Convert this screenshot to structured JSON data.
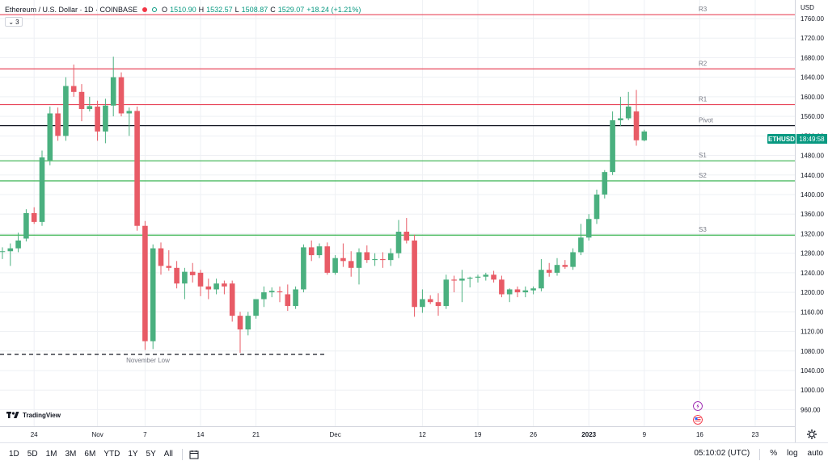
{
  "legend": {
    "title": "Ethereum / U.S. Dollar · 1D · COINBASE",
    "o_label": "O",
    "o_value": "1510.90",
    "h_label": "H",
    "h_value": "1532.57",
    "l_label": "L",
    "l_value": "1508.87",
    "c_label": "C",
    "c_value": "1529.07",
    "change": "+18.24 (+1.21%)",
    "indicator_count": "3"
  },
  "currency": "USD",
  "price_badge": {
    "symbol": "ETHUSD",
    "countdown": "18:49:58"
  },
  "colors": {
    "up": "#4ab07f",
    "down": "#e85b66",
    "resistance": "#e8475a",
    "support": "#38b24f",
    "pivot": "#131722",
    "grid": "#eef0f4"
  },
  "chart_data": {
    "type": "candlestick",
    "y_ticks": [
      960,
      1000,
      1040,
      1080,
      1120,
      1160,
      1200,
      1240,
      1280,
      1320,
      1360,
      1400,
      1440,
      1480,
      1520,
      1560,
      1600,
      1640,
      1680,
      1720,
      1760
    ],
    "ylim": [
      926,
      1798
    ],
    "x_ticks": [
      {
        "label": "24",
        "i": 4
      },
      {
        "label": "Nov",
        "i": 12
      },
      {
        "label": "7",
        "i": 18
      },
      {
        "label": "14",
        "i": 25
      },
      {
        "label": "21",
        "i": 32
      },
      {
        "label": "Dec",
        "i": 42
      },
      {
        "label": "12",
        "i": 53
      },
      {
        "label": "19",
        "i": 60
      },
      {
        "label": "26",
        "i": 67
      },
      {
        "label": "2023",
        "i": 74
      },
      {
        "label": "9",
        "i": 81
      },
      {
        "label": "16",
        "i": 88
      },
      {
        "label": "23",
        "i": 95
      }
    ],
    "levels": [
      {
        "label": "R3",
        "value": 1768,
        "kind": "resistance"
      },
      {
        "label": "R2",
        "value": 1657,
        "kind": "resistance"
      },
      {
        "label": "R1",
        "value": 1584,
        "kind": "resistance"
      },
      {
        "label": "Pivot",
        "value": 1541,
        "kind": "pivot"
      },
      {
        "label": "S1",
        "value": 1469,
        "kind": "support"
      },
      {
        "label": "S2",
        "value": 1428,
        "kind": "support"
      },
      {
        "label": "S3",
        "value": 1317,
        "kind": "support"
      }
    ],
    "annotation": {
      "label": "November Low",
      "value": 1073
    },
    "candles": [
      {
        "o": 1284,
        "h": 1292,
        "l": 1268,
        "c": 1284
      },
      {
        "o": 1284,
        "h": 1300,
        "l": 1254,
        "c": 1290
      },
      {
        "o": 1290,
        "h": 1322,
        "l": 1282,
        "c": 1306
      },
      {
        "o": 1310,
        "h": 1370,
        "l": 1304,
        "c": 1362
      },
      {
        "o": 1362,
        "h": 1374,
        "l": 1340,
        "c": 1344
      },
      {
        "o": 1344,
        "h": 1490,
        "l": 1336,
        "c": 1476
      },
      {
        "o": 1470,
        "h": 1580,
        "l": 1460,
        "c": 1566
      },
      {
        "o": 1566,
        "h": 1578,
        "l": 1510,
        "c": 1520
      },
      {
        "o": 1520,
        "h": 1640,
        "l": 1510,
        "c": 1622
      },
      {
        "o": 1622,
        "h": 1666,
        "l": 1600,
        "c": 1610
      },
      {
        "o": 1610,
        "h": 1626,
        "l": 1550,
        "c": 1575
      },
      {
        "o": 1575,
        "h": 1600,
        "l": 1570,
        "c": 1581
      },
      {
        "o": 1580,
        "h": 1592,
        "l": 1510,
        "c": 1529
      },
      {
        "o": 1529,
        "h": 1596,
        "l": 1505,
        "c": 1582
      },
      {
        "o": 1582,
        "h": 1682,
        "l": 1560,
        "c": 1640
      },
      {
        "o": 1640,
        "h": 1650,
        "l": 1560,
        "c": 1566
      },
      {
        "o": 1566,
        "h": 1578,
        "l": 1520,
        "c": 1571
      },
      {
        "o": 1571,
        "h": 1580,
        "l": 1326,
        "c": 1336
      },
      {
        "o": 1336,
        "h": 1346,
        "l": 1082,
        "c": 1100
      },
      {
        "o": 1100,
        "h": 1298,
        "l": 1084,
        "c": 1290
      },
      {
        "o": 1290,
        "h": 1302,
        "l": 1236,
        "c": 1254
      },
      {
        "o": 1254,
        "h": 1286,
        "l": 1244,
        "c": 1250
      },
      {
        "o": 1250,
        "h": 1264,
        "l": 1208,
        "c": 1218
      },
      {
        "o": 1218,
        "h": 1250,
        "l": 1186,
        "c": 1242
      },
      {
        "o": 1242,
        "h": 1260,
        "l": 1220,
        "c": 1235
      },
      {
        "o": 1240,
        "h": 1246,
        "l": 1192,
        "c": 1212
      },
      {
        "o": 1212,
        "h": 1228,
        "l": 1186,
        "c": 1206
      },
      {
        "o": 1206,
        "h": 1228,
        "l": 1196,
        "c": 1218
      },
      {
        "o": 1218,
        "h": 1224,
        "l": 1196,
        "c": 1212
      },
      {
        "o": 1218,
        "h": 1224,
        "l": 1140,
        "c": 1152
      },
      {
        "o": 1152,
        "h": 1160,
        "l": 1076,
        "c": 1124
      },
      {
        "o": 1124,
        "h": 1160,
        "l": 1112,
        "c": 1152
      },
      {
        "o": 1152,
        "h": 1184,
        "l": 1146,
        "c": 1186
      },
      {
        "o": 1186,
        "h": 1212,
        "l": 1170,
        "c": 1200
      },
      {
        "o": 1200,
        "h": 1210,
        "l": 1190,
        "c": 1203
      },
      {
        "o": 1202,
        "h": 1212,
        "l": 1180,
        "c": 1200
      },
      {
        "o": 1196,
        "h": 1216,
        "l": 1162,
        "c": 1172
      },
      {
        "o": 1172,
        "h": 1212,
        "l": 1166,
        "c": 1206
      },
      {
        "o": 1206,
        "h": 1298,
        "l": 1200,
        "c": 1292
      },
      {
        "o": 1292,
        "h": 1306,
        "l": 1264,
        "c": 1276
      },
      {
        "o": 1276,
        "h": 1300,
        "l": 1270,
        "c": 1294
      },
      {
        "o": 1294,
        "h": 1302,
        "l": 1236,
        "c": 1240
      },
      {
        "o": 1240,
        "h": 1276,
        "l": 1236,
        "c": 1270
      },
      {
        "o": 1270,
        "h": 1300,
        "l": 1252,
        "c": 1264
      },
      {
        "o": 1264,
        "h": 1284,
        "l": 1232,
        "c": 1250
      },
      {
        "o": 1250,
        "h": 1290,
        "l": 1216,
        "c": 1282
      },
      {
        "o": 1282,
        "h": 1296,
        "l": 1260,
        "c": 1266
      },
      {
        "o": 1266,
        "h": 1280,
        "l": 1254,
        "c": 1268
      },
      {
        "o": 1268,
        "h": 1282,
        "l": 1250,
        "c": 1266
      },
      {
        "o": 1266,
        "h": 1290,
        "l": 1254,
        "c": 1280
      },
      {
        "o": 1280,
        "h": 1348,
        "l": 1270,
        "c": 1324
      },
      {
        "o": 1324,
        "h": 1352,
        "l": 1300,
        "c": 1306
      },
      {
        "o": 1306,
        "h": 1318,
        "l": 1150,
        "c": 1170
      },
      {
        "o": 1170,
        "h": 1206,
        "l": 1158,
        "c": 1186
      },
      {
        "o": 1186,
        "h": 1194,
        "l": 1176,
        "c": 1180
      },
      {
        "o": 1180,
        "h": 1198,
        "l": 1152,
        "c": 1172
      },
      {
        "o": 1172,
        "h": 1236,
        "l": 1166,
        "c": 1226
      },
      {
        "o": 1226,
        "h": 1234,
        "l": 1200,
        "c": 1224
      },
      {
        "o": 1224,
        "h": 1246,
        "l": 1180,
        "c": 1228
      },
      {
        "o": 1228,
        "h": 1232,
        "l": 1210,
        "c": 1230
      },
      {
        "o": 1230,
        "h": 1236,
        "l": 1220,
        "c": 1232
      },
      {
        "o": 1232,
        "h": 1240,
        "l": 1224,
        "c": 1236
      },
      {
        "o": 1236,
        "h": 1244,
        "l": 1220,
        "c": 1226
      },
      {
        "o": 1226,
        "h": 1234,
        "l": 1190,
        "c": 1196
      },
      {
        "o": 1196,
        "h": 1208,
        "l": 1180,
        "c": 1206
      },
      {
        "o": 1206,
        "h": 1212,
        "l": 1190,
        "c": 1200
      },
      {
        "o": 1200,
        "h": 1212,
        "l": 1190,
        "c": 1204
      },
      {
        "o": 1204,
        "h": 1212,
        "l": 1196,
        "c": 1208
      },
      {
        "o": 1208,
        "h": 1268,
        "l": 1202,
        "c": 1246
      },
      {
        "o": 1246,
        "h": 1260,
        "l": 1232,
        "c": 1240
      },
      {
        "o": 1240,
        "h": 1270,
        "l": 1234,
        "c": 1256
      },
      {
        "o": 1256,
        "h": 1266,
        "l": 1248,
        "c": 1252
      },
      {
        "o": 1252,
        "h": 1290,
        "l": 1246,
        "c": 1282
      },
      {
        "o": 1282,
        "h": 1340,
        "l": 1276,
        "c": 1312
      },
      {
        "o": 1312,
        "h": 1360,
        "l": 1306,
        "c": 1350
      },
      {
        "o": 1350,
        "h": 1410,
        "l": 1340,
        "c": 1400
      },
      {
        "o": 1400,
        "h": 1450,
        "l": 1392,
        "c": 1446
      },
      {
        "o": 1446,
        "h": 1570,
        "l": 1440,
        "c": 1552
      },
      {
        "o": 1552,
        "h": 1600,
        "l": 1540,
        "c": 1556
      },
      {
        "o": 1556,
        "h": 1610,
        "l": 1552,
        "c": 1580
      },
      {
        "o": 1570,
        "h": 1614,
        "l": 1500,
        "c": 1511
      },
      {
        "o": 1510.9,
        "h": 1532.57,
        "l": 1508.87,
        "c": 1529.07
      }
    ],
    "first_index": 0,
    "last_index": 84
  },
  "bottom_bar": {
    "ranges": [
      "1D",
      "5D",
      "1M",
      "3M",
      "6M",
      "YTD",
      "1Y",
      "5Y",
      "All"
    ],
    "clock": "05:10:02 (UTC)",
    "percent": "%",
    "log": "log",
    "auto": "auto"
  },
  "watermark": "TradingView"
}
